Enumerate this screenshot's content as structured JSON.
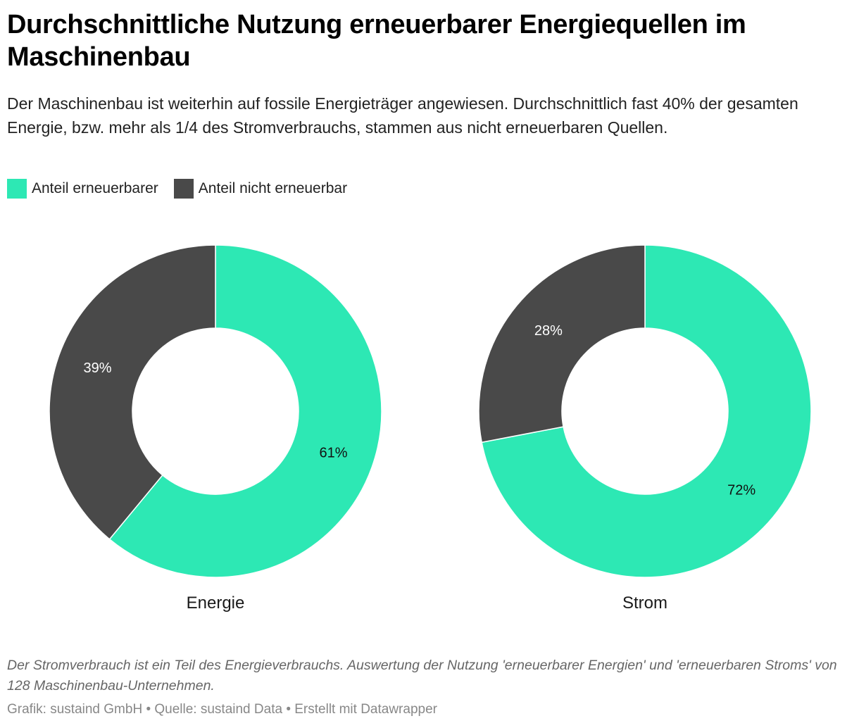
{
  "title": "Durchschnittliche Nutzung erneuerbarer Energiequellen im Maschinenbau",
  "subtitle": "Der Maschinenbau ist weiterhin auf fossile Energieträger angewiesen. Durchschnittlich fast 40% der gesamten Energie, bzw. mehr als 1/4 des Stromverbrauchs, stammen aus nicht erneuerbaren Quellen.",
  "legend": [
    {
      "label": "Anteil erneuerbarer",
      "color": "#2de8b4"
    },
    {
      "label": "Anteil nicht erneuerbar",
      "color": "#494949"
    }
  ],
  "chart_data": [
    {
      "type": "pie",
      "title": "Energie",
      "categories": [
        "Anteil erneuerbarer",
        "Anteil nicht erneuerbar"
      ],
      "values": [
        61,
        39
      ],
      "labels": [
        "61%",
        "39%"
      ]
    },
    {
      "type": "pie",
      "title": "Strom",
      "categories": [
        "Anteil erneuerbarer",
        "Anteil nicht erneuerbar"
      ],
      "values": [
        72,
        28
      ],
      "labels": [
        "72%",
        "28%"
      ]
    }
  ],
  "notes": "Der Stromverbrauch ist ein Teil des Energieverbrauchs. Auswertung der Nutzung 'erneuerbarer Energien' und 'erneuerbaren Stroms' von 128 Maschinenbau-Unternehmen.",
  "footer": "Grafik: sustaind GmbH • Quelle: sustaind Data • Erstellt mit Datawrapper"
}
